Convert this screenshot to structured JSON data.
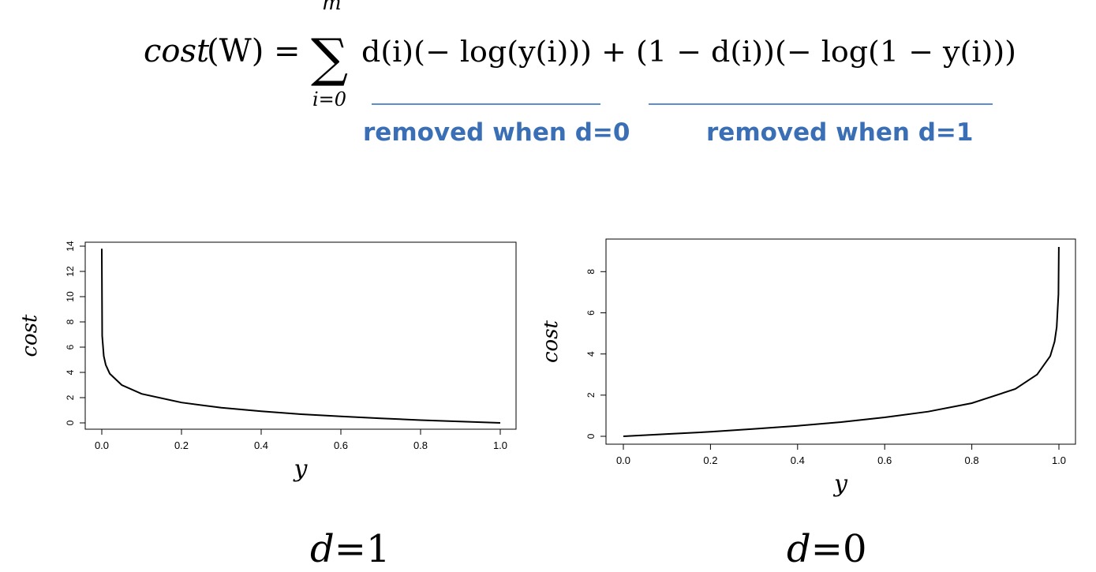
{
  "formula": {
    "lhs": "cost",
    "lhs_arg": "(W) =",
    "sum_upper": "m",
    "sum_lower": "i=0",
    "body": "d(i)(− log(y(i))) + (1 − d(i))(− log(1 − y(i)))"
  },
  "annotations": {
    "left": "removed when d=0",
    "right": "removed when d=1",
    "color": "#3a6fb6"
  },
  "captions": {
    "left_var": "d",
    "left_val": "=1",
    "right_var": "d",
    "right_val": "=0"
  },
  "chart_data": [
    {
      "type": "line",
      "curve": "cost = -log(y)",
      "xlabel": "y",
      "ylabel": "cost",
      "xlim": [
        0,
        1
      ],
      "ylim": [
        0,
        14
      ],
      "xticks": [
        "0.0",
        "0.2",
        "0.4",
        "0.6",
        "0.8",
        "1.0"
      ],
      "yticks": [
        "0",
        "2",
        "4",
        "6",
        "8",
        "10",
        "12",
        "14"
      ],
      "x": [
        1e-06,
        0.001,
        0.005,
        0.01,
        0.02,
        0.05,
        0.1,
        0.2,
        0.3,
        0.4,
        0.5,
        0.6,
        0.7,
        0.8,
        0.9,
        1.0
      ],
      "y": [
        13.8,
        6.9,
        5.3,
        4.6,
        3.9,
        3.0,
        2.3,
        1.61,
        1.2,
        0.92,
        0.69,
        0.51,
        0.36,
        0.22,
        0.11,
        0.0
      ],
      "grid": false
    },
    {
      "type": "line",
      "curve": "cost = -log(1-y)",
      "xlabel": "y",
      "ylabel": "cost",
      "xlim": [
        0,
        1
      ],
      "ylim": [
        0,
        9.2
      ],
      "xticks": [
        "0.0",
        "0.2",
        "0.4",
        "0.6",
        "0.8",
        "1.0"
      ],
      "yticks": [
        "0",
        "2",
        "4",
        "6",
        "8"
      ],
      "x": [
        0.0,
        0.1,
        0.2,
        0.3,
        0.4,
        0.5,
        0.6,
        0.7,
        0.8,
        0.9,
        0.95,
        0.98,
        0.99,
        0.995,
        0.999,
        0.9999
      ],
      "y": [
        0.0,
        0.11,
        0.22,
        0.36,
        0.51,
        0.69,
        0.92,
        1.2,
        1.61,
        2.3,
        3.0,
        3.9,
        4.6,
        5.3,
        6.9,
        9.2
      ],
      "grid": false
    }
  ]
}
